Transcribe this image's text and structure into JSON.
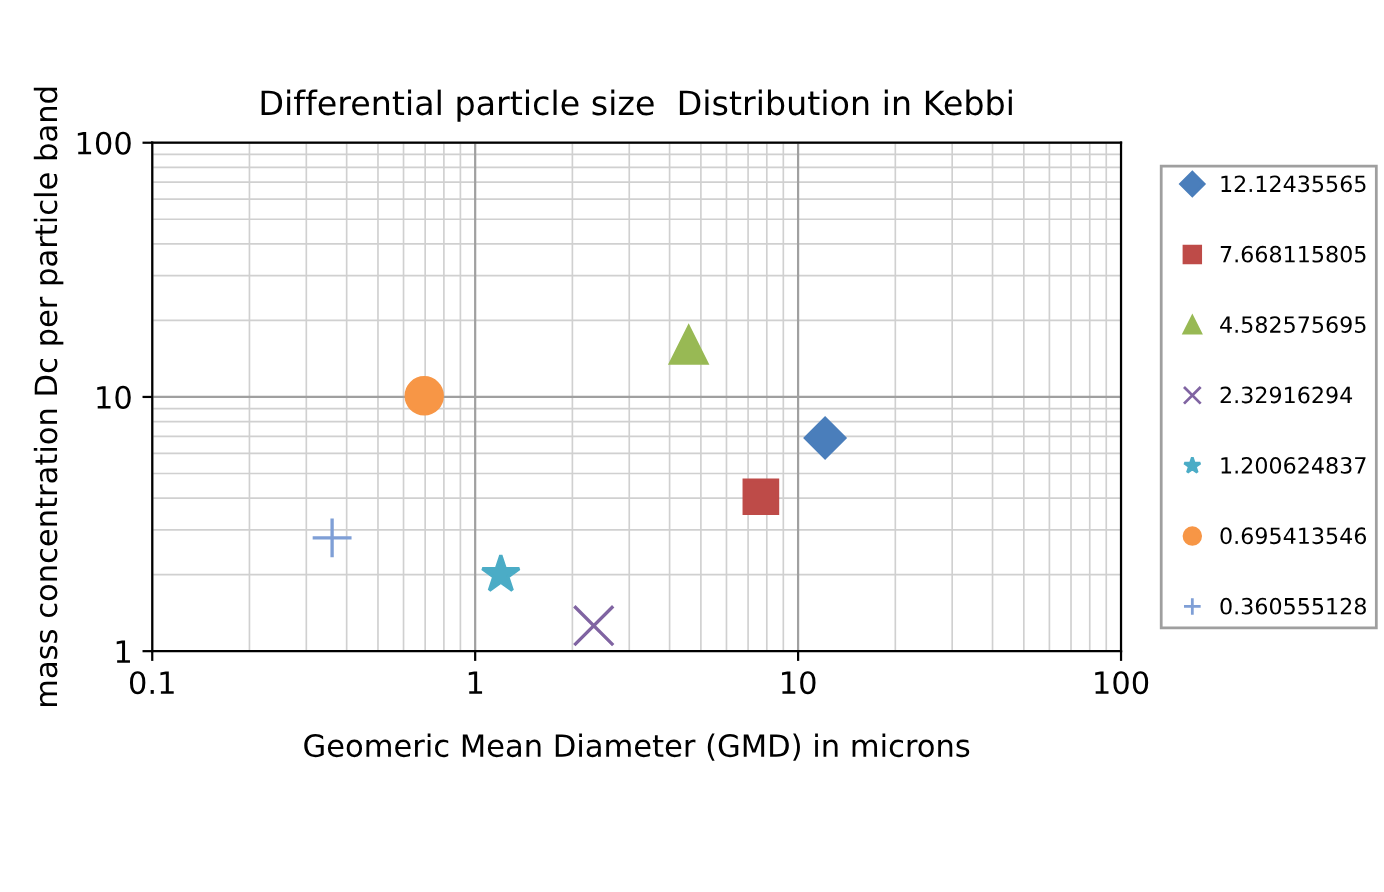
{
  "chart_data": {
    "type": "scatter",
    "title": "Differential particle size  Distribution in Kebbi",
    "xlabel": "Geomeric Mean Diameter (GMD) in microns",
    "ylabel": "mass concentration Dc per particle band",
    "log": "xy",
    "xlim": [
      0.1,
      100
    ],
    "xticks": [
      0.1,
      1,
      10,
      100
    ],
    "ylim": [
      1,
      100
    ],
    "yticks": [
      1,
      10,
      100
    ],
    "grid": true,
    "legend": "right",
    "series": [
      {
        "name": "12.12435565",
        "color": "#4a7ebb",
        "marker": "diamond",
        "x": [
          12.12435565
        ],
        "values": [
          6.9
        ]
      },
      {
        "name": "7.668115805",
        "color": "#be4b48",
        "marker": "square",
        "x": [
          7.668115805
        ],
        "values": [
          4.05
        ]
      },
      {
        "name": "4.582575695",
        "color": "#98b954",
        "marker": "triangle",
        "x": [
          4.582575695
        ],
        "values": [
          16
        ]
      },
      {
        "name": "2.32916294",
        "color": "#8064a2",
        "marker": "cross",
        "x": [
          2.32916294
        ],
        "values": [
          1.26
        ]
      },
      {
        "name": "1.200624837",
        "color": "#4bacc6",
        "marker": "star",
        "x": [
          1.200624837
        ],
        "values": [
          2.0
        ]
      },
      {
        "name": "0.695413546",
        "color": "#f79646",
        "marker": "circle",
        "x": [
          0.695413546
        ],
        "values": [
          10.1
        ]
      },
      {
        "name": "0.360555128",
        "color": "#7f9fd6",
        "marker": "plus",
        "x": [
          0.360555128
        ],
        "values": [
          2.79
        ]
      }
    ]
  }
}
